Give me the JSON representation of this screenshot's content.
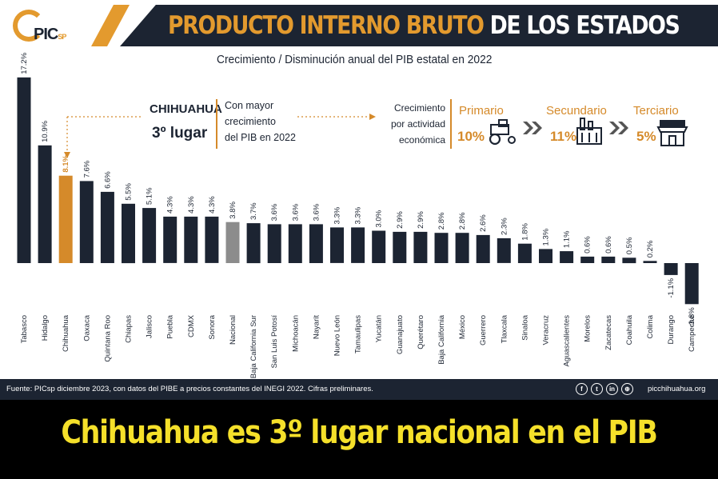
{
  "header": {
    "title_part1": "PRODUCTO INTERNO BRUTO",
    "title_part2": " DE LOS ESTADOS",
    "logo_text": "PIC",
    "logo_sub": "SP"
  },
  "callout": {
    "state": "CHIHUAHUA",
    "rank": "3º lugar",
    "line1": "Con mayor",
    "line2": "crecimiento",
    "line3": "del PIB en 2022"
  },
  "sectors": {
    "intro_1": "Crecimiento",
    "intro_2": "por actividad",
    "intro_3": "económica",
    "items": [
      {
        "name": "Primario",
        "value": "10%",
        "icon": "tractor-icon"
      },
      {
        "name": "Secundario",
        "value": "11%",
        "icon": "factory-icon"
      },
      {
        "name": "Terciario",
        "value": "5%",
        "icon": "shop-icon"
      }
    ]
  },
  "chart_data": {
    "type": "bar",
    "title": "Crecimiento / Disminución anual del PIB estatal en 2022",
    "categories": [
      "Tabasco",
      "Hidalgo",
      "Chihuahua",
      "Oaxaca",
      "Quintana Roo",
      "Chiapas",
      "Jalisco",
      "Puebla",
      "CDMX",
      "Sonora",
      "Nacional",
      "Baja California Sur",
      "San Luis Potosí",
      "Michoacán",
      "Nayarit",
      "Nuevo León",
      "Tamaulipas",
      "Yucatán",
      "Guanajuato",
      "Querétaro",
      "Baja California",
      "México",
      "Guerrero",
      "Tlaxcala",
      "Sinaloa",
      "Veracruz",
      "Aguascalientes",
      "Morelos",
      "Zacatecas",
      "Coahuila",
      "Colima",
      "Durango",
      "Campeche"
    ],
    "values": [
      17.2,
      10.9,
      8.1,
      7.6,
      6.6,
      5.5,
      5.1,
      4.3,
      4.3,
      4.3,
      3.8,
      3.7,
      3.6,
      3.6,
      3.6,
      3.3,
      3.3,
      3.0,
      2.9,
      2.9,
      2.8,
      2.8,
      2.6,
      2.3,
      1.8,
      1.3,
      1.1,
      0.6,
      0.6,
      0.5,
      0.2,
      -1.1,
      -3.8
    ],
    "labels": [
      "17.2%",
      "10.9%",
      "8.1%",
      "7.6%",
      "6.6%",
      "5.5%",
      "5.1%",
      "4.3%",
      "4.3%",
      "4.3%",
      "3.8%",
      "3.7%",
      "3.6%",
      "3.6%",
      "3.6%",
      "3.3%",
      "3.3%",
      "3.0%",
      "2.9%",
      "2.9%",
      "2.8%",
      "2.8%",
      "2.6%",
      "2.3%",
      "1.8%",
      "1.3%",
      "1.1%",
      "0.6%",
      "0.6%",
      "0.5%",
      "0.2%",
      "-1.1%",
      "-3.8%"
    ],
    "highlight": {
      "Chihuahua": "#d58a2a",
      "Nacional": "#8c8c8c"
    },
    "bar_color": "#1c2432",
    "ylim": [
      -3.8,
      17.2
    ]
  },
  "footer": {
    "source": "Fuente: PICsp diciembre 2023, con datos del PIBE a precios constantes del INEGI 2022. Cifras preliminares.",
    "website": "picchihuahua.org",
    "social": [
      {
        "icon": "facebook-icon",
        "glyph": "f"
      },
      {
        "icon": "twitter-icon",
        "glyph": "t"
      },
      {
        "icon": "linkedin-icon",
        "glyph": "in"
      },
      {
        "icon": "web-icon",
        "glyph": "⊕"
      }
    ]
  },
  "banner": {
    "headline": "Chihuahua es 3º lugar nacional en el PIB"
  }
}
